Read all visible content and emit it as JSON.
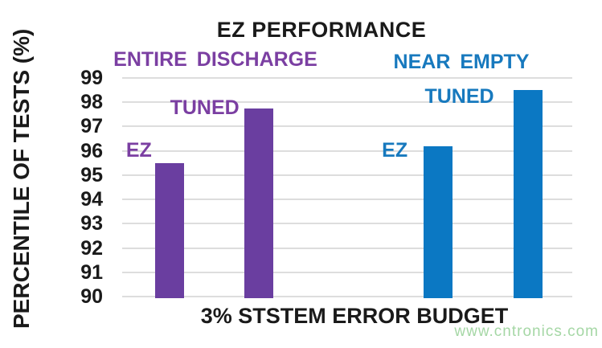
{
  "chart_data": {
    "type": "bar",
    "title": "EZ PERFORMANCE",
    "xlabel": "3% STSTEM ERROR BUDGET",
    "ylabel": "PERCENTILE OF TESTS (%)",
    "ylim": [
      90,
      99
    ],
    "yticks": [
      99,
      98,
      97,
      96,
      95,
      94,
      93,
      92,
      91,
      90
    ],
    "grid": true,
    "legend_position": "none (labels drawn beside bars)",
    "groups": [
      {
        "name": "ENTIRE DISCHARGE",
        "bar_color": "#6A3EA0",
        "text_color": "#7B3FA2",
        "bars": [
          {
            "label": "EZ",
            "value": 95.5
          },
          {
            "label": "TUNED",
            "value": 97.75
          }
        ]
      },
      {
        "name": "NEAR EMPTY",
        "bar_color": "#0B78C3",
        "text_color": "#1779BE",
        "bars": [
          {
            "label": "EZ",
            "value": 96.2
          },
          {
            "label": "TUNED",
            "value": 98.5
          }
        ]
      }
    ],
    "colors": {
      "grid": "#DDDDDD",
      "title_text": "#1A1A1A",
      "watermark": "#A5D7A5"
    }
  },
  "watermark": "www.cntronics.com"
}
